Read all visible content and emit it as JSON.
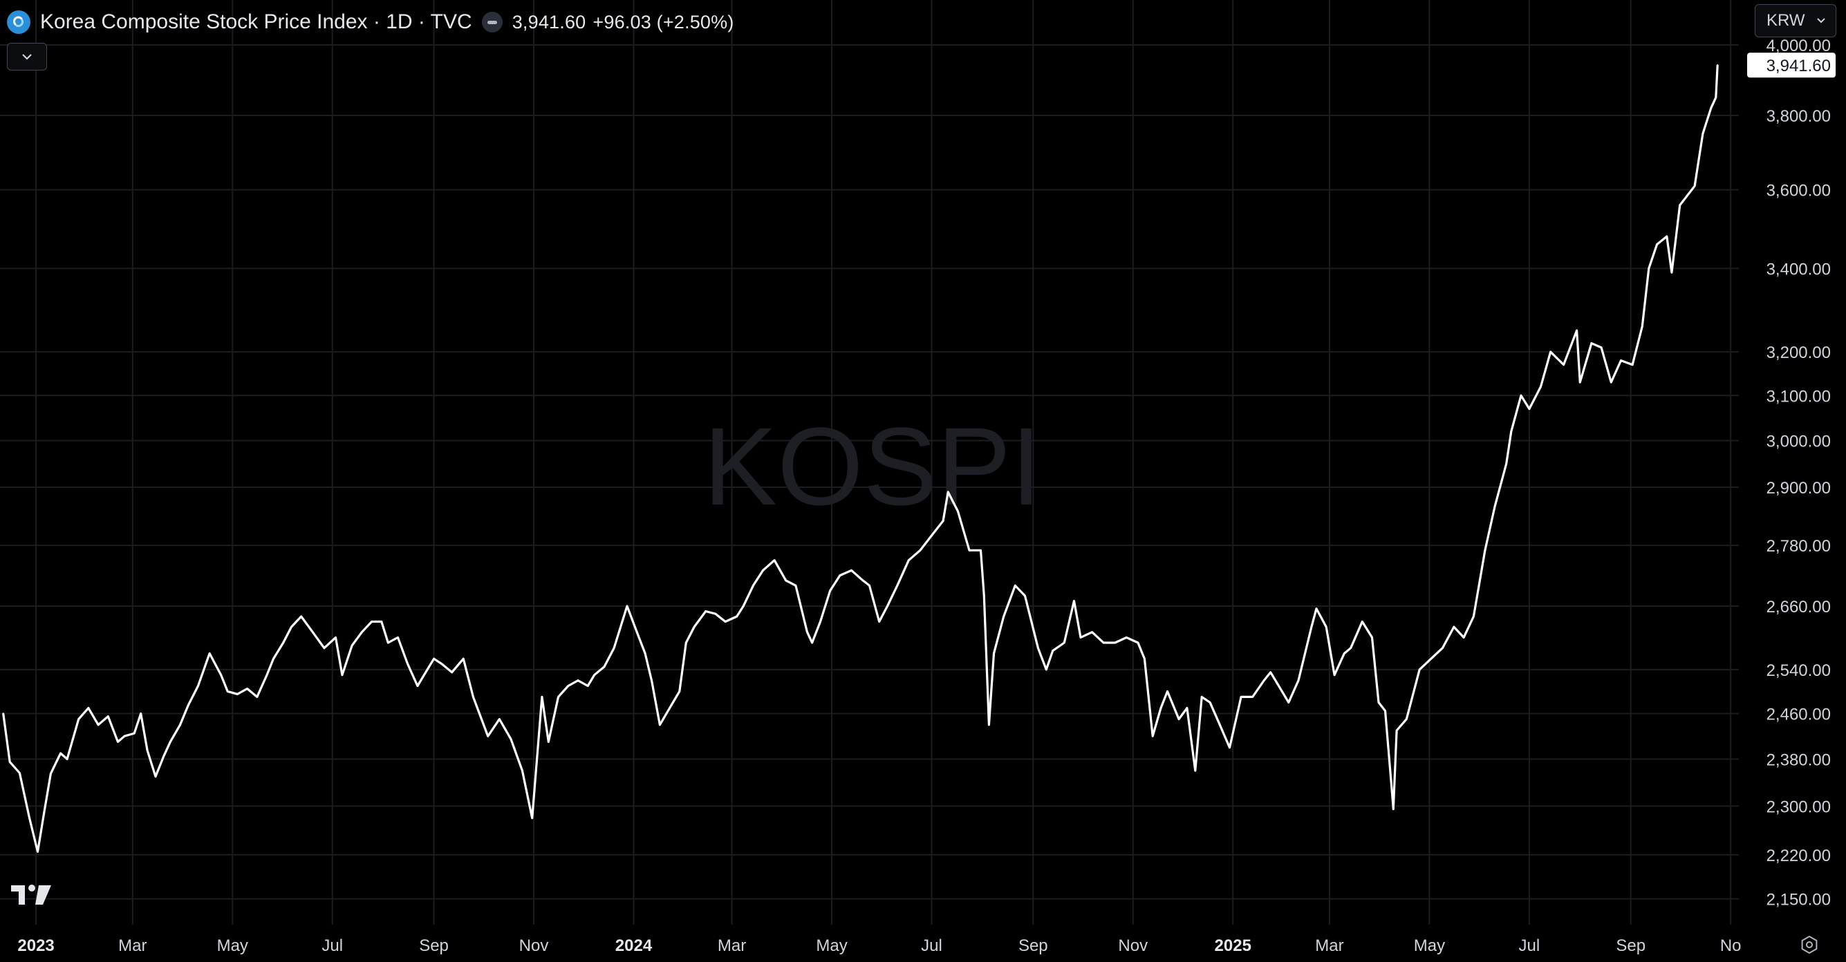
{
  "header": {
    "title": "Korea Composite Stock Price Index · 1D · TVC",
    "last": "3,941.60",
    "change": "+96.03 (+2.50%)"
  },
  "currency": {
    "label": "KRW"
  },
  "watermark": "KOSPI",
  "colors": {
    "background": "#000000",
    "line": "#ffffff",
    "grid": "#1c1d21",
    "axis_text": "#d1d4dc",
    "watermark": "#1e1f24",
    "logo": "#2a8fd6"
  },
  "icons": {
    "collapse": "chevron-down-icon",
    "currency_dropdown": "chevron-down-icon",
    "brand": "tradingview-logo-icon",
    "settings": "gear-icon",
    "symbol": "kospi-symbol-icon"
  },
  "chart_data": {
    "type": "line",
    "scale": "log",
    "grid": true,
    "last_value_label": "3,941.60",
    "y_ticks": [
      {
        "value": 4000,
        "label": "4,000.00"
      },
      {
        "value": 3800,
        "label": "3,800.00"
      },
      {
        "value": 3600,
        "label": "3,600.00"
      },
      {
        "value": 3400,
        "label": "3,400.00"
      },
      {
        "value": 3200,
        "label": "3,200.00"
      },
      {
        "value": 3100,
        "label": "3,100.00"
      },
      {
        "value": 3000,
        "label": "3,000.00"
      },
      {
        "value": 2900,
        "label": "2,900.00"
      },
      {
        "value": 2780,
        "label": "2,780.00"
      },
      {
        "value": 2660,
        "label": "2,660.00"
      },
      {
        "value": 2540,
        "label": "2,540.00"
      },
      {
        "value": 2460,
        "label": "2,460.00"
      },
      {
        "value": 2380,
        "label": "2,380.00"
      },
      {
        "value": 2300,
        "label": "2,300.00"
      },
      {
        "value": 2220,
        "label": "2,220.00"
      },
      {
        "value": 2150,
        "label": "2,150.00"
      }
    ],
    "x_ticks": [
      {
        "date": "2023-01-01",
        "label": "2023",
        "bold": true
      },
      {
        "date": "2023-03-01",
        "label": "Mar"
      },
      {
        "date": "2023-05-01",
        "label": "May"
      },
      {
        "date": "2023-07-01",
        "label": "Jul"
      },
      {
        "date": "2023-09-01",
        "label": "Sep"
      },
      {
        "date": "2023-11-01",
        "label": "Nov"
      },
      {
        "date": "2024-01-01",
        "label": "2024",
        "bold": true
      },
      {
        "date": "2024-03-01",
        "label": "Mar"
      },
      {
        "date": "2024-05-01",
        "label": "May"
      },
      {
        "date": "2024-07-01",
        "label": "Jul"
      },
      {
        "date": "2024-09-01",
        "label": "Sep"
      },
      {
        "date": "2024-11-01",
        "label": "Nov"
      },
      {
        "date": "2025-01-01",
        "label": "2025",
        "bold": true
      },
      {
        "date": "2025-03-01",
        "label": "Mar"
      },
      {
        "date": "2025-05-01",
        "label": "May"
      },
      {
        "date": "2025-07-01",
        "label": "Jul"
      },
      {
        "date": "2025-09-01",
        "label": "Sep"
      },
      {
        "date": "2025-11-01",
        "label": "No"
      }
    ],
    "x_range": [
      "2022-12-10",
      "2025-11-06"
    ],
    "y_range": [
      2110,
      4010
    ],
    "series": [
      {
        "points": [
          [
            "2022-12-12",
            2460
          ],
          [
            "2022-12-16",
            2375
          ],
          [
            "2022-12-22",
            2356
          ],
          [
            "2022-12-28",
            2280
          ],
          [
            "2023-01-02",
            2225
          ],
          [
            "2023-01-06",
            2290
          ],
          [
            "2023-01-10",
            2355
          ],
          [
            "2023-01-16",
            2390
          ],
          [
            "2023-01-20",
            2380
          ],
          [
            "2023-01-27",
            2450
          ],
          [
            "2023-02-02",
            2470
          ],
          [
            "2023-02-08",
            2440
          ],
          [
            "2023-02-14",
            2455
          ],
          [
            "2023-02-20",
            2410
          ],
          [
            "2023-02-24",
            2420
          ],
          [
            "2023-03-02",
            2425
          ],
          [
            "2023-03-06",
            2460
          ],
          [
            "2023-03-10",
            2395
          ],
          [
            "2023-03-15",
            2350
          ],
          [
            "2023-03-20",
            2385
          ],
          [
            "2023-03-24",
            2410
          ],
          [
            "2023-03-30",
            2440
          ],
          [
            "2023-04-04",
            2475
          ],
          [
            "2023-04-10",
            2510
          ],
          [
            "2023-04-17",
            2570
          ],
          [
            "2023-04-24",
            2530
          ],
          [
            "2023-04-28",
            2500
          ],
          [
            "2023-05-04",
            2495
          ],
          [
            "2023-05-10",
            2505
          ],
          [
            "2023-05-16",
            2490
          ],
          [
            "2023-05-22",
            2530
          ],
          [
            "2023-05-26",
            2560
          ],
          [
            "2023-06-01",
            2590
          ],
          [
            "2023-06-06",
            2620
          ],
          [
            "2023-06-12",
            2640
          ],
          [
            "2023-06-19",
            2610
          ],
          [
            "2023-06-26",
            2580
          ],
          [
            "2023-07-03",
            2600
          ],
          [
            "2023-07-07",
            2530
          ],
          [
            "2023-07-13",
            2585
          ],
          [
            "2023-07-19",
            2610
          ],
          [
            "2023-07-25",
            2630
          ],
          [
            "2023-07-31",
            2630
          ],
          [
            "2023-08-04",
            2590
          ],
          [
            "2023-08-10",
            2600
          ],
          [
            "2023-08-16",
            2550
          ],
          [
            "2023-08-22",
            2510
          ],
          [
            "2023-08-28",
            2540
          ],
          [
            "2023-09-01",
            2560
          ],
          [
            "2023-09-06",
            2550
          ],
          [
            "2023-09-12",
            2535
          ],
          [
            "2023-09-19",
            2560
          ],
          [
            "2023-09-25",
            2490
          ],
          [
            "2023-10-04",
            2420
          ],
          [
            "2023-10-11",
            2450
          ],
          [
            "2023-10-18",
            2415
          ],
          [
            "2023-10-25",
            2360
          ],
          [
            "2023-10-31",
            2280
          ],
          [
            "2023-11-06",
            2490
          ],
          [
            "2023-11-10",
            2410
          ],
          [
            "2023-11-16",
            2490
          ],
          [
            "2023-11-22",
            2510
          ],
          [
            "2023-11-28",
            2520
          ],
          [
            "2023-12-04",
            2510
          ],
          [
            "2023-12-08",
            2530
          ],
          [
            "2023-12-14",
            2545
          ],
          [
            "2023-12-20",
            2580
          ],
          [
            "2023-12-28",
            2660
          ],
          [
            "2024-01-03",
            2610
          ],
          [
            "2024-01-08",
            2570
          ],
          [
            "2024-01-12",
            2520
          ],
          [
            "2024-01-17",
            2440
          ],
          [
            "2024-01-23",
            2470
          ],
          [
            "2024-01-29",
            2500
          ],
          [
            "2024-02-02",
            2590
          ],
          [
            "2024-02-07",
            2620
          ],
          [
            "2024-02-14",
            2650
          ],
          [
            "2024-02-20",
            2645
          ],
          [
            "2024-02-26",
            2630
          ],
          [
            "2024-03-04",
            2640
          ],
          [
            "2024-03-08",
            2660
          ],
          [
            "2024-03-14",
            2700
          ],
          [
            "2024-03-20",
            2730
          ],
          [
            "2024-03-27",
            2750
          ],
          [
            "2024-04-03",
            2710
          ],
          [
            "2024-04-09",
            2700
          ],
          [
            "2024-04-16",
            2610
          ],
          [
            "2024-04-19",
            2590
          ],
          [
            "2024-04-24",
            2630
          ],
          [
            "2024-04-30",
            2690
          ],
          [
            "2024-05-06",
            2720
          ],
          [
            "2024-05-13",
            2730
          ],
          [
            "2024-05-20",
            2710
          ],
          [
            "2024-05-24",
            2700
          ],
          [
            "2024-05-30",
            2630
          ],
          [
            "2024-06-04",
            2660
          ],
          [
            "2024-06-10",
            2700
          ],
          [
            "2024-06-17",
            2750
          ],
          [
            "2024-06-24",
            2770
          ],
          [
            "2024-07-01",
            2800
          ],
          [
            "2024-07-08",
            2830
          ],
          [
            "2024-07-11",
            2890
          ],
          [
            "2024-07-17",
            2850
          ],
          [
            "2024-07-24",
            2770
          ],
          [
            "2024-07-31",
            2770
          ],
          [
            "2024-08-02",
            2680
          ],
          [
            "2024-08-05",
            2440
          ],
          [
            "2024-08-08",
            2570
          ],
          [
            "2024-08-14",
            2640
          ],
          [
            "2024-08-21",
            2700
          ],
          [
            "2024-08-27",
            2680
          ],
          [
            "2024-09-04",
            2580
          ],
          [
            "2024-09-09",
            2540
          ],
          [
            "2024-09-13",
            2575
          ],
          [
            "2024-09-20",
            2590
          ],
          [
            "2024-09-26",
            2670
          ],
          [
            "2024-09-30",
            2600
          ],
          [
            "2024-10-07",
            2610
          ],
          [
            "2024-10-14",
            2590
          ],
          [
            "2024-10-21",
            2590
          ],
          [
            "2024-10-28",
            2600
          ],
          [
            "2024-11-04",
            2590
          ],
          [
            "2024-11-08",
            2560
          ],
          [
            "2024-11-13",
            2420
          ],
          [
            "2024-11-18",
            2470
          ],
          [
            "2024-11-22",
            2500
          ],
          [
            "2024-11-29",
            2450
          ],
          [
            "2024-12-04",
            2470
          ],
          [
            "2024-12-09",
            2360
          ],
          [
            "2024-12-13",
            2490
          ],
          [
            "2024-12-18",
            2480
          ],
          [
            "2024-12-24",
            2440
          ],
          [
            "2024-12-30",
            2400
          ],
          [
            "2025-01-06",
            2490
          ],
          [
            "2025-01-13",
            2490
          ],
          [
            "2025-01-20",
            2520
          ],
          [
            "2025-01-24",
            2535
          ],
          [
            "2025-01-31",
            2500
          ],
          [
            "2025-02-04",
            2480
          ],
          [
            "2025-02-10",
            2520
          ],
          [
            "2025-02-18",
            2620
          ],
          [
            "2025-02-21",
            2655
          ],
          [
            "2025-02-27",
            2620
          ],
          [
            "2025-03-04",
            2530
          ],
          [
            "2025-03-10",
            2570
          ],
          [
            "2025-03-14",
            2580
          ],
          [
            "2025-03-21",
            2630
          ],
          [
            "2025-03-27",
            2600
          ],
          [
            "2025-03-31",
            2480
          ],
          [
            "2025-04-04",
            2465
          ],
          [
            "2025-04-08",
            2330
          ],
          [
            "2025-04-09",
            2295
          ],
          [
            "2025-04-11",
            2430
          ],
          [
            "2025-04-17",
            2450
          ],
          [
            "2025-04-25",
            2540
          ],
          [
            "2025-05-02",
            2560
          ],
          [
            "2025-05-09",
            2580
          ],
          [
            "2025-05-16",
            2620
          ],
          [
            "2025-05-22",
            2600
          ],
          [
            "2025-05-28",
            2640
          ],
          [
            "2025-06-04",
            2770
          ],
          [
            "2025-06-10",
            2860
          ],
          [
            "2025-06-17",
            2950
          ],
          [
            "2025-06-20",
            3020
          ],
          [
            "2025-06-26",
            3100
          ],
          [
            "2025-07-01",
            3070
          ],
          [
            "2025-07-08",
            3120
          ],
          [
            "2025-07-14",
            3200
          ],
          [
            "2025-07-22",
            3170
          ],
          [
            "2025-07-30",
            3250
          ],
          [
            "2025-08-01",
            3130
          ],
          [
            "2025-08-08",
            3220
          ],
          [
            "2025-08-14",
            3210
          ],
          [
            "2025-08-20",
            3130
          ],
          [
            "2025-08-26",
            3180
          ],
          [
            "2025-09-02",
            3170
          ],
          [
            "2025-09-08",
            3260
          ],
          [
            "2025-09-12",
            3400
          ],
          [
            "2025-09-17",
            3460
          ],
          [
            "2025-09-23",
            3480
          ],
          [
            "2025-09-26",
            3390
          ],
          [
            "2025-10-01",
            3560
          ],
          [
            "2025-10-10",
            3610
          ],
          [
            "2025-10-15",
            3750
          ],
          [
            "2025-10-20",
            3820
          ],
          [
            "2025-10-23",
            3850
          ],
          [
            "2025-10-24",
            3941.6
          ]
        ]
      }
    ]
  }
}
